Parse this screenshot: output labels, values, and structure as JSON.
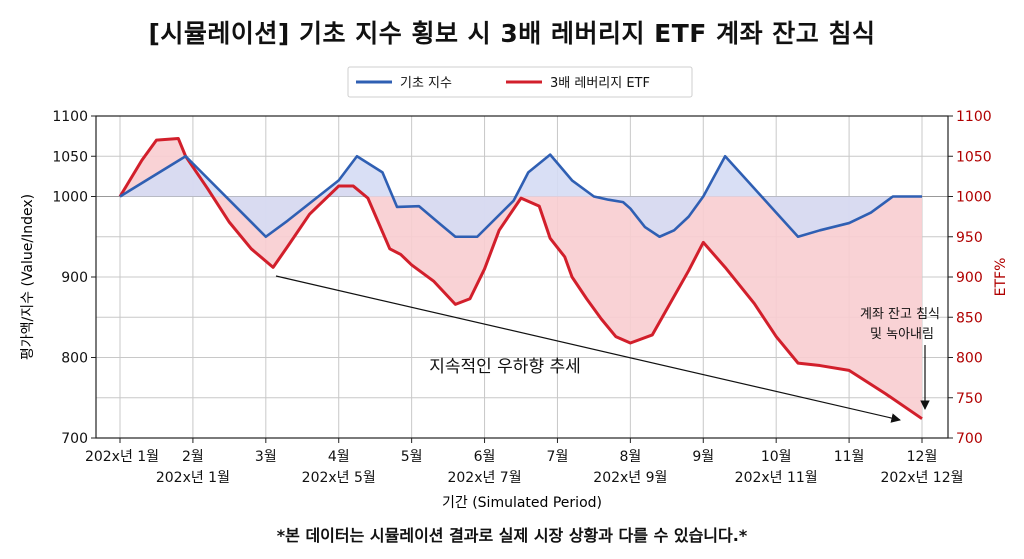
{
  "title": "[시뮬레이션] 기초 지수 횡보 시 3배 레버리지 ETF 계좌 잔고 침식",
  "footnote": "*본 데이터는 시뮬레이션 결과로 실제 시장 상황과 다를 수 있습니다.*",
  "colors": {
    "index": "#2f5fb3",
    "etf": "#d21f2b",
    "fill_above": "#d5dcf4",
    "fill_below": "#f8cdd0",
    "right_axis": "#b00000"
  },
  "chart_data": {
    "type": "line",
    "title": "[시뮬레이션] 기초 지수 횡보 시 3배 레버리지 ETF 계좌 잔고 침식",
    "xlabel": "기간 (Simulated Period)",
    "ylabel": "평가액/지수 (Value/Index)",
    "ylabel_right": "ETF%",
    "ylim": [
      700,
      1100
    ],
    "xlim": [
      0,
      11
    ],
    "y_ticks": [
      "700",
      "800",
      "900",
      "1000",
      "1050",
      "1100"
    ],
    "y_ticks_right": [
      "700",
      "750",
      "800",
      "850",
      "900",
      "950",
      "1000",
      "1050",
      "1100"
    ],
    "x_ticks_top": [
      "202x년 1월",
      "2월",
      "3월",
      "4월",
      "5월",
      "6월",
      "7월",
      "8월",
      "9월",
      "10월",
      "11월",
      "12월"
    ],
    "x_ticks_bottom": [
      "",
      "202x년 1월",
      "",
      "202x년 5월",
      "",
      "202x년 7월",
      "",
      "202x년 9월",
      "",
      "202x년 11월",
      "",
      "202x년 12월"
    ],
    "legend": [
      "기초 지수",
      "3배 레버리지 ETF"
    ],
    "legend_position": "top-center",
    "grid": true,
    "baseline": 1000,
    "series": [
      {
        "name": "기초 지수",
        "x": [
          0,
          0.9,
          2,
          2.3,
          3,
          3.25,
          3.6,
          3.8,
          4.1,
          4.4,
          4.6,
          4.9,
          5.1,
          5.4,
          5.6,
          5.9,
          6.2,
          6.5,
          6.7,
          6.9,
          7.0,
          7.2,
          7.4,
          7.6,
          7.8,
          8.0,
          8.3,
          8.6,
          9.0,
          9.3,
          9.6,
          10.0,
          10.3,
          10.6,
          11.0
        ],
        "values": [
          1000,
          1050,
          950,
          970,
          1020,
          1050,
          1030,
          987,
          988,
          965,
          950,
          950,
          968,
          995,
          1030,
          1052,
          1020,
          1000,
          996,
          993,
          985,
          962,
          950,
          958,
          975,
          1000,
          1050,
          1020,
          980,
          950,
          958,
          967,
          980,
          1000,
          1000
        ]
      },
      {
        "name": "3배 레버리지 ETF",
        "x": [
          0,
          0.3,
          0.5,
          0.8,
          0.9,
          1.2,
          1.5,
          1.8,
          2.1,
          2.3,
          2.6,
          3.0,
          3.2,
          3.4,
          3.7,
          3.85,
          4.0,
          4.3,
          4.6,
          4.8,
          5.0,
          5.2,
          5.5,
          5.75,
          5.9,
          6.1,
          6.2,
          6.4,
          6.6,
          6.8,
          7.0,
          7.3,
          7.55,
          7.8,
          8.0,
          8.3,
          8.7,
          9.0,
          9.3,
          9.6,
          10.0,
          10.5,
          11.0
        ],
        "values": [
          1000,
          1045,
          1070,
          1072,
          1050,
          1010,
          968,
          935,
          912,
          938,
          978,
          1013,
          1013,
          998,
          935,
          928,
          915,
          895,
          866,
          873,
          910,
          958,
          998,
          988,
          948,
          925,
          900,
          873,
          848,
          826,
          818,
          828,
          868,
          908,
          943,
          912,
          867,
          826,
          793,
          790,
          784,
          755,
          724
        ]
      }
    ],
    "annotations": [
      {
        "text": "지속적인 우하향 추세"
      },
      {
        "text": "계좌 잔고 침식"
      },
      {
        "text": "및 녹아내림"
      }
    ]
  }
}
